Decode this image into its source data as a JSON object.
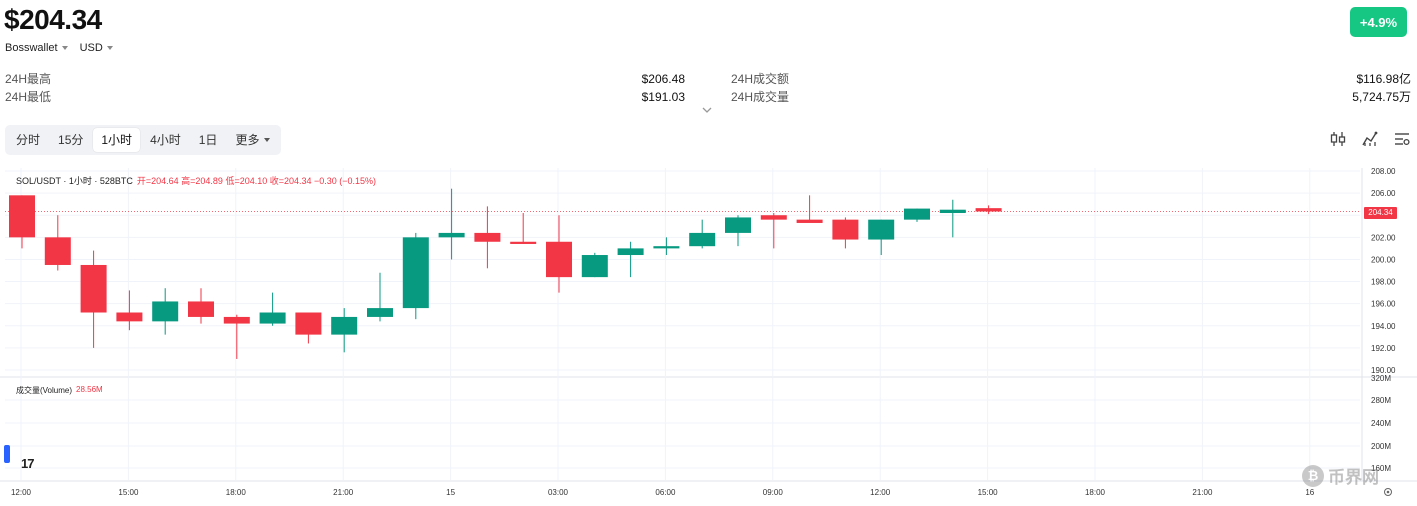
{
  "header": {
    "price": "$204.34",
    "change": "+4.9%",
    "exchange": "Bosswallet",
    "currency": "USD"
  },
  "stats": {
    "high_label": "24H最高",
    "high_value": "$206.48",
    "low_label": "24H最低",
    "low_value": "$191.03",
    "turnover_label": "24H成交额",
    "turnover_value": "$116.98亿",
    "volume_label": "24H成交量",
    "volume_value": "5,724.75万"
  },
  "tabs": [
    {
      "label": "分时"
    },
    {
      "label": "15分"
    },
    {
      "label": "1小时",
      "active": true
    },
    {
      "label": "4小时"
    },
    {
      "label": "1日"
    },
    {
      "label": "更多"
    }
  ],
  "tool_icons": [
    "candlestick-icon",
    "indicator-icon",
    "settings-icon"
  ],
  "legend": {
    "symbol": "SOL/USDT · 1小时 · 528BTC",
    "ohlc": "开=204.64 高=204.89 低=204.10 收=204.34 −0.30 (−0.15%)"
  },
  "volume_legend": {
    "label": "成交量(Volume)",
    "value": "28.56M"
  },
  "current_price_tag": "204.34",
  "watermark": "币界网",
  "tv_logo": "17",
  "colors": {
    "up": "#089981",
    "down": "#f23645",
    "badge": "#16c784",
    "grid": "#f0f3fa",
    "axis_text": "#333333"
  },
  "chart_data": {
    "type": "candlestick",
    "price_axis": {
      "ticks": [
        "208.00",
        "206.00",
        "204.00",
        "202.00",
        "200.00",
        "198.00",
        "196.00",
        "194.00",
        "192.00",
        "190.00"
      ],
      "range": [
        190,
        208
      ]
    },
    "volume_axis": {
      "ticks": [
        "320M",
        "280M",
        "240M",
        "200M",
        "160M"
      ]
    },
    "time_axis": {
      "ticks": [
        "12:00",
        "15:00",
        "18:00",
        "21:00",
        "15",
        "03:00",
        "06:00",
        "09:00",
        "12:00",
        "15:00",
        "18:00",
        "21:00",
        "16"
      ]
    },
    "current_price": 204.34,
    "candles": [
      {
        "o": 205.8,
        "h": 205.8,
        "l": 201.0,
        "c": 202.0
      },
      {
        "o": 202.0,
        "h": 204.0,
        "l": 199.0,
        "c": 199.5
      },
      {
        "o": 199.5,
        "h": 200.8,
        "l": 192.0,
        "c": 195.2
      },
      {
        "o": 195.2,
        "h": 197.2,
        "l": 193.6,
        "c": 194.4
      },
      {
        "o": 194.4,
        "h": 197.4,
        "l": 193.2,
        "c": 196.2
      },
      {
        "o": 196.2,
        "h": 197.4,
        "l": 194.2,
        "c": 194.8
      },
      {
        "o": 194.8,
        "h": 195.0,
        "l": 191.0,
        "c": 194.2
      },
      {
        "o": 194.2,
        "h": 197.0,
        "l": 194.0,
        "c": 195.2
      },
      {
        "o": 195.2,
        "h": 195.2,
        "l": 192.4,
        "c": 193.2
      },
      {
        "o": 193.2,
        "h": 195.6,
        "l": 191.6,
        "c": 194.8
      },
      {
        "o": 194.8,
        "h": 198.8,
        "l": 194.4,
        "c": 195.6
      },
      {
        "o": 195.6,
        "h": 202.4,
        "l": 194.6,
        "c": 202.0
      },
      {
        "o": 202.0,
        "h": 206.4,
        "l": 200.0,
        "c": 202.4
      },
      {
        "o": 202.4,
        "h": 204.8,
        "l": 199.2,
        "c": 201.6
      },
      {
        "o": 201.6,
        "h": 204.2,
        "l": 201.4,
        "c": 201.4
      },
      {
        "o": 201.6,
        "h": 204.0,
        "l": 197.0,
        "c": 198.4
      },
      {
        "o": 198.4,
        "h": 200.6,
        "l": 198.4,
        "c": 200.4
      },
      {
        "o": 200.4,
        "h": 201.6,
        "l": 198.4,
        "c": 201.0
      },
      {
        "o": 201.0,
        "h": 202.0,
        "l": 200.4,
        "c": 201.2
      },
      {
        "o": 201.2,
        "h": 203.6,
        "l": 201.0,
        "c": 202.4
      },
      {
        "o": 202.4,
        "h": 204.0,
        "l": 201.2,
        "c": 203.8
      },
      {
        "o": 204.0,
        "h": 204.2,
        "l": 201.0,
        "c": 203.6
      },
      {
        "o": 203.6,
        "h": 205.8,
        "l": 203.4,
        "c": 203.3
      },
      {
        "o": 203.6,
        "h": 203.8,
        "l": 201.0,
        "c": 201.8
      },
      {
        "o": 201.8,
        "h": 203.6,
        "l": 200.4,
        "c": 203.6
      },
      {
        "o": 203.6,
        "h": 204.6,
        "l": 203.4,
        "c": 204.6
      },
      {
        "o": 204.2,
        "h": 205.4,
        "l": 202.0,
        "c": 204.5
      },
      {
        "o": 204.64,
        "h": 204.89,
        "l": 204.1,
        "c": 204.34
      }
    ]
  }
}
